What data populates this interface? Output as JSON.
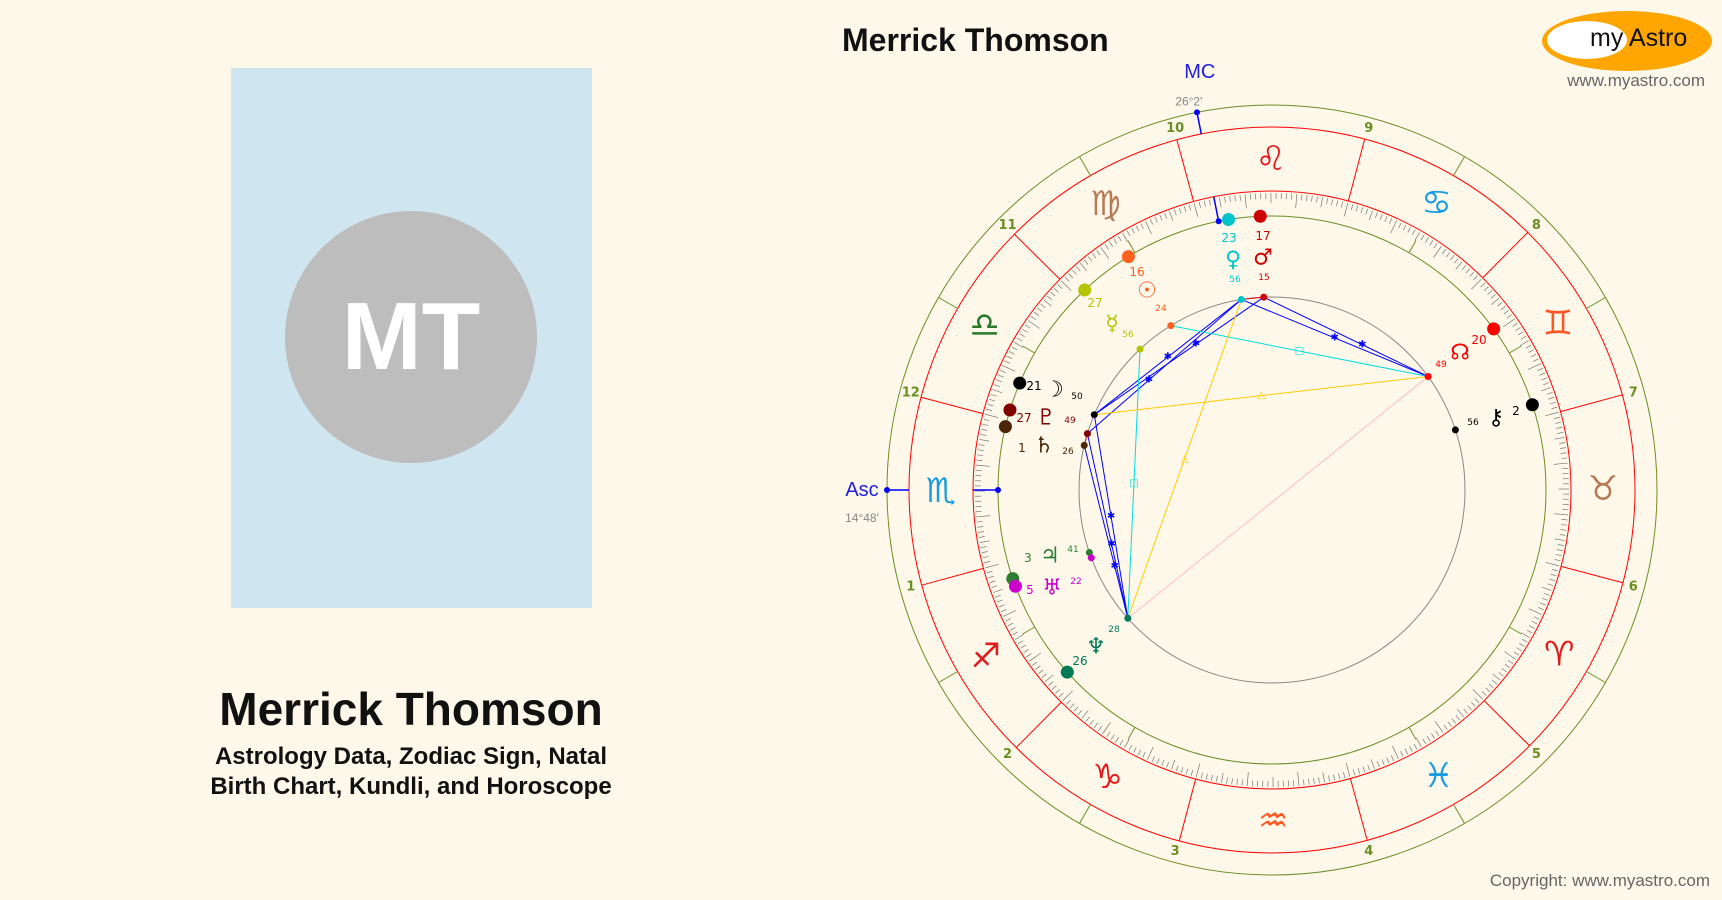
{
  "profile": {
    "initials": "MT",
    "name": "Merrick Thomson",
    "subtitle_line1": "Astrology Data, Zodiac Sign, Natal",
    "subtitle_line2": "Birth Chart, Kundli, and Horoscope"
  },
  "header": {
    "title": "Merrick Thomson"
  },
  "logo": {
    "text": "my Astro",
    "url": "www.myastro.com",
    "colors": {
      "ring": "#ffa500",
      "inner": "#ffffff"
    }
  },
  "footer": {
    "copyright": "Copyright: www.myastro.com"
  },
  "chart_data": {
    "type": "natal-wheel",
    "house_system": "equal",
    "ascendant": {
      "label": "Asc",
      "sign": "Scorpio",
      "deg": 14,
      "min": 48,
      "text": "14°48'"
    },
    "midheaven": {
      "label": "MC",
      "sign": "Leo",
      "deg": 26,
      "min": 2,
      "text": "26°2'"
    },
    "house_numbers": [
      "1",
      "2",
      "3",
      "4",
      "5",
      "6",
      "7",
      "8",
      "9",
      "10",
      "11",
      "12"
    ],
    "signs": [
      {
        "name": "Aries",
        "glyph": "♈",
        "color": "#e21a1a"
      },
      {
        "name": "Taurus",
        "glyph": "♉",
        "color": "#b87a55"
      },
      {
        "name": "Gemini",
        "glyph": "♊",
        "color": "#ff5522"
      },
      {
        "name": "Cancer",
        "glyph": "♋",
        "color": "#1a9de0"
      },
      {
        "name": "Leo",
        "glyph": "♌",
        "color": "#e21a1a"
      },
      {
        "name": "Virgo",
        "glyph": "♍",
        "color": "#b87a55"
      },
      {
        "name": "Libra",
        "glyph": "♎",
        "color": "#2a7a2a"
      },
      {
        "name": "Scorpio",
        "glyph": "♏",
        "color": "#1a9de0"
      },
      {
        "name": "Sagittarius",
        "glyph": "♐",
        "color": "#e21a1a"
      },
      {
        "name": "Capricorn",
        "glyph": "♑",
        "color": "#e21a1a"
      },
      {
        "name": "Aquarius",
        "glyph": "♒",
        "color": "#ff5522"
      },
      {
        "name": "Pisces",
        "glyph": "♓",
        "color": "#1a9de0"
      }
    ],
    "planets": [
      {
        "name": "Sun",
        "glyph": "☉",
        "sign": "Virgo",
        "deg": "16",
        "min": "24",
        "color": "#ff6020"
      },
      {
        "name": "Moon",
        "glyph": "☽",
        "sign": "Libra",
        "deg": "21",
        "min": "50",
        "color": "#000000"
      },
      {
        "name": "Mercury",
        "glyph": "☿",
        "sign": "Virgo",
        "deg": "27",
        "min": "56",
        "color": "#b5c400"
      },
      {
        "name": "Venus",
        "glyph": "♀",
        "sign": "Leo",
        "deg": "23",
        "min": "56",
        "color": "#00c4cc"
      },
      {
        "name": "Mars",
        "glyph": "♂",
        "sign": "Leo",
        "deg": "17",
        "min": "15",
        "color": "#cc0000"
      },
      {
        "name": "Jupiter",
        "glyph": "♃",
        "sign": "Sagittarius",
        "deg": "3",
        "min": "41",
        "color": "#2e7d32"
      },
      {
        "name": "Saturn",
        "glyph": "♄",
        "sign": "Scorpio",
        "deg": "1",
        "min": "26",
        "color": "#4a2508"
      },
      {
        "name": "Uranus",
        "glyph": "♅",
        "sign": "Sagittarius",
        "deg": "5",
        "min": "22",
        "color": "#cc00cc"
      },
      {
        "name": "Neptune",
        "glyph": "♆",
        "sign": "Sagittarius",
        "deg": "26",
        "min": "28",
        "color": "#007a55"
      },
      {
        "name": "Pluto",
        "glyph": "♇",
        "sign": "Libra",
        "deg": "27",
        "min": "49",
        "color": "#800000"
      },
      {
        "name": "North Node",
        "glyph": "☊",
        "sign": "Gemini",
        "deg": "20",
        "min": "49",
        "color": "#ff0000"
      },
      {
        "name": "Chiron",
        "glyph": "⚷",
        "sign": "Gemini",
        "deg": "2",
        "min": "56",
        "color": "#000000"
      }
    ],
    "aspect_colors": {
      "conjunction": "#ff0000",
      "sextile": "#0000ff",
      "square": "#00dddd",
      "trine": "#ffcc00",
      "opposition": "#ffb0b0"
    },
    "aspects": [
      {
        "a": "Venus",
        "b": "North Node",
        "type": "sextile"
      },
      {
        "a": "Mars",
        "b": "North Node",
        "type": "sextile"
      },
      {
        "a": "Venus",
        "b": "Moon",
        "type": "sextile"
      },
      {
        "a": "Mars",
        "b": "Moon",
        "type": "sextile"
      },
      {
        "a": "Venus",
        "b": "Pluto",
        "type": "sextile"
      },
      {
        "a": "Neptune",
        "b": "Moon",
        "type": "sextile"
      },
      {
        "a": "Neptune",
        "b": "Pluto",
        "type": "sextile"
      },
      {
        "a": "Neptune",
        "b": "Saturn",
        "type": "sextile"
      },
      {
        "a": "Mercury",
        "b": "Neptune",
        "type": "square"
      },
      {
        "a": "Sun",
        "b": "North Node",
        "type": "square"
      },
      {
        "a": "Moon",
        "b": "North Node",
        "type": "trine"
      },
      {
        "a": "Venus",
        "b": "Neptune",
        "type": "trine"
      },
      {
        "a": "Neptune",
        "b": "North Node",
        "type": "opposition"
      },
      {
        "a": "Venus",
        "b": "Mars",
        "type": "conjunction"
      },
      {
        "a": "Pluto",
        "b": "Saturn",
        "type": "conjunction"
      }
    ]
  }
}
